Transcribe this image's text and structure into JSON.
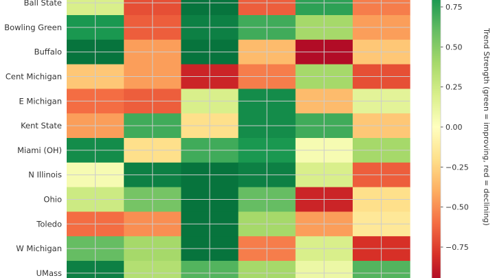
{
  "chart_data": {
    "type": "heatmap",
    "title": "",
    "xlabel": "",
    "ylabel": "",
    "rows": [
      "Ball State",
      "Bowling Green",
      "Buffalo",
      "Cent Michigan",
      "E Michigan",
      "Kent State",
      "Miami (OH)",
      "N Illinois",
      "Ohio",
      "Toledo",
      "W Michigan",
      "UMass"
    ],
    "values": [
      [
        0.2,
        -0.7,
        0.95,
        -0.65,
        0.75,
        -0.55
      ],
      [
        0.8,
        -0.65,
        0.9,
        0.7,
        0.4,
        -0.45
      ],
      [
        0.95,
        -0.45,
        0.95,
        -0.35,
        -0.95,
        -0.3
      ],
      [
        -0.3,
        -0.45,
        -0.85,
        -0.55,
        0.4,
        -0.7
      ],
      [
        -0.6,
        -0.65,
        0.2,
        0.85,
        -0.35,
        0.15
      ],
      [
        -0.45,
        0.7,
        -0.2,
        0.85,
        0.7,
        -0.3
      ],
      [
        0.85,
        -0.2,
        0.7,
        0.8,
        0.05,
        0.4
      ],
      [
        0.05,
        0.9,
        0.95,
        0.9,
        0.2,
        -0.65
      ],
      [
        0.25,
        0.55,
        0.95,
        0.6,
        -0.85,
        -0.2
      ],
      [
        -0.6,
        -0.5,
        0.95,
        0.4,
        -0.45,
        -0.15
      ],
      [
        0.6,
        0.4,
        0.95,
        -0.55,
        0.2,
        -0.8
      ],
      [
        0.9,
        0.35,
        0.65,
        0.4,
        0.1,
        0.65
      ]
    ],
    "colormap": "RdYlGn",
    "vmin": -1,
    "vmax": 1,
    "grid": true,
    "colorbar": {
      "label": "Trend Strength (green = improving, red = declining)",
      "ticks": [
        0.75,
        0.5,
        0.25,
        0.0,
        -0.25,
        -0.5,
        -0.75
      ],
      "tick_labels": [
        "0.75",
        "0.50",
        "0.25",
        "0.00",
        "−0.25",
        "−0.50",
        "−0.75"
      ],
      "position": "right"
    }
  }
}
